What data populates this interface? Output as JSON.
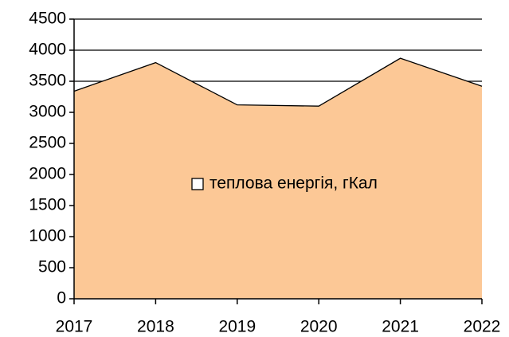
{
  "chart_data": {
    "type": "area",
    "categories": [
      "2017",
      "2018",
      "2019",
      "2020",
      "2021",
      "2022"
    ],
    "series": [
      {
        "name": "теплова енергія, гКал",
        "color": "#fcc896",
        "values": [
          3340,
          3800,
          3120,
          3100,
          3870,
          3420
        ]
      }
    ],
    "ylim": [
      0,
      4500
    ],
    "yticks": [
      0,
      500,
      1000,
      1500,
      2000,
      2500,
      3000,
      3500,
      4000,
      4500
    ],
    "grid": true
  }
}
